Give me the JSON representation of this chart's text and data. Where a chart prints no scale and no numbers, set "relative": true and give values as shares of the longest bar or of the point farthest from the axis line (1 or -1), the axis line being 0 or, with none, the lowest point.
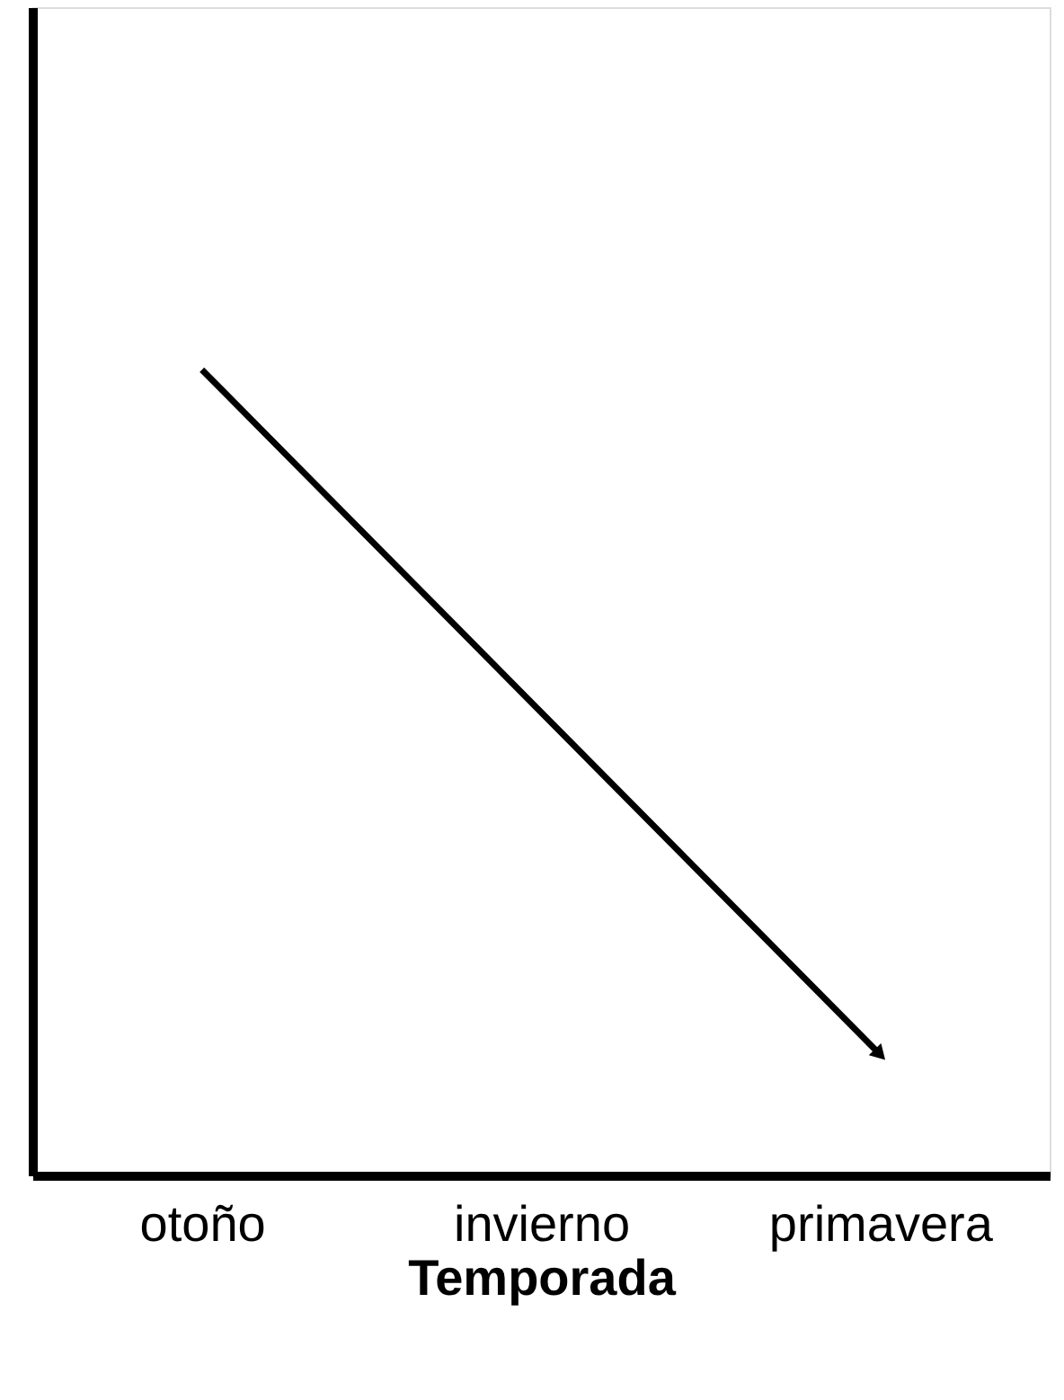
{
  "chart_data": {
    "type": "line",
    "relative": true,
    "xlabel": "Temporada",
    "categories": [
      "otoño",
      "invierno",
      "primavera"
    ],
    "series": [
      {
        "color": "#000000",
        "values": [
          1,
          0.575,
          0.15
        ]
      }
    ],
    "marker": "none",
    "line_style": "solid"
  }
}
